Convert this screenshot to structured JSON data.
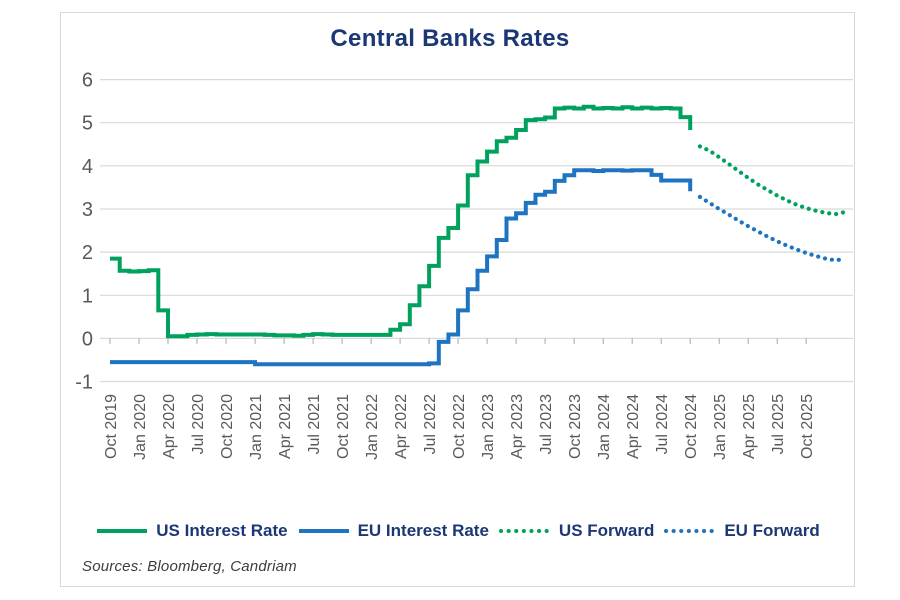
{
  "colors": {
    "us_green": "#00A15C",
    "eu_blue": "#1E74C0",
    "heading_text": "#1C3775",
    "axis_text": "#595959",
    "gridline": "#D9D9D9",
    "tick": "#A6A6A6",
    "card_border": "#D8D8D8",
    "sources_text": "#3D3D3D"
  },
  "footer": {
    "sources_label": "Sources: Bloomberg, Candriam"
  },
  "chart_data": {
    "type": "line",
    "title": "Central Banks Rates",
    "xlabel": "",
    "ylabel": "",
    "x_frequency": "monthly",
    "x_start": "Oct 2019",
    "ylim": [
      -1,
      6
    ],
    "grid": true,
    "legend_position": "bottom",
    "y_ticks": [
      6,
      5,
      4,
      3,
      2,
      1,
      0,
      -1
    ],
    "y_tick_labels": [
      "6",
      "5",
      "4",
      "3",
      "2",
      "1",
      "0",
      "-1"
    ],
    "x_tick_month_indices": [
      0,
      3,
      6,
      9,
      12,
      15,
      18,
      21,
      24,
      27,
      30,
      33,
      36,
      39,
      42,
      45,
      48,
      51,
      54,
      57,
      60,
      63,
      66,
      69,
      72
    ],
    "x_tick_labels": [
      "Oct 2019",
      "Jan 2020",
      "Apr 2020",
      "Jul 2020",
      "Oct 2020",
      "Jan 2021",
      "Apr 2021",
      "Jul 2021",
      "Oct 2021",
      "Jan 2022",
      "Apr 2022",
      "Jul 2022",
      "Oct 2022",
      "Jan 2023",
      "Apr 2023",
      "Jul 2023",
      "Oct 2023",
      "Jan 2024",
      "Apr 2024",
      "Jul 2024",
      "Oct 2024",
      "Jan 2025",
      "Apr 2025",
      "Jul 2025",
      "Oct 2025"
    ],
    "series": [
      {
        "name": "US Interest Rate",
        "color": "#00A15C",
        "style": "solid",
        "step": true,
        "start_month": 0,
        "start_label": "Oct 2019",
        "values": [
          1.85,
          1.57,
          1.55,
          1.56,
          1.58,
          0.65,
          0.05,
          0.05,
          0.08,
          0.09,
          0.1,
          0.09,
          0.09,
          0.09,
          0.09,
          0.09,
          0.08,
          0.07,
          0.07,
          0.06,
          0.08,
          0.1,
          0.09,
          0.08,
          0.08,
          0.08,
          0.08,
          0.08,
          0.08,
          0.2,
          0.33,
          0.77,
          1.21,
          1.68,
          2.33,
          2.56,
          3.08,
          3.78,
          4.1,
          4.33,
          4.57,
          4.65,
          4.83,
          5.06,
          5.08,
          5.12,
          5.33,
          5.35,
          5.33,
          5.37,
          5.33,
          5.34,
          5.33,
          5.36,
          5.33,
          5.35,
          5.33,
          5.34,
          5.33,
          5.13,
          4.83
        ]
      },
      {
        "name": "EU Interest Rate",
        "color": "#1E74C0",
        "style": "solid",
        "step": true,
        "start_month": 0,
        "start_label": "Oct 2019",
        "values": [
          -0.55,
          -0.55,
          -0.55,
          -0.55,
          -0.55,
          -0.55,
          -0.55,
          -0.55,
          -0.55,
          -0.55,
          -0.55,
          -0.55,
          -0.55,
          -0.55,
          -0.55,
          -0.6,
          -0.6,
          -0.6,
          -0.6,
          -0.6,
          -0.6,
          -0.6,
          -0.6,
          -0.6,
          -0.6,
          -0.6,
          -0.6,
          -0.6,
          -0.6,
          -0.6,
          -0.6,
          -0.6,
          -0.6,
          -0.58,
          -0.08,
          0.09,
          0.65,
          1.14,
          1.57,
          1.9,
          2.28,
          2.78,
          2.9,
          3.14,
          3.33,
          3.4,
          3.65,
          3.78,
          3.9,
          3.9,
          3.88,
          3.9,
          3.9,
          3.89,
          3.9,
          3.9,
          3.79,
          3.66,
          3.66,
          3.66,
          3.41
        ]
      },
      {
        "name": "US Forward",
        "color": "#00A15C",
        "style": "dotted",
        "step": false,
        "start_month": 61,
        "start_label": "Nov 2024",
        "values": [
          4.45,
          4.35,
          4.2,
          4.04,
          3.88,
          3.72,
          3.57,
          3.44,
          3.31,
          3.2,
          3.1,
          3.02,
          2.96,
          2.91,
          2.88,
          2.93
        ]
      },
      {
        "name": "EU Forward",
        "color": "#1E74C0",
        "style": "dotted",
        "step": false,
        "start_month": 61,
        "start_label": "Nov 2024",
        "values": [
          3.28,
          3.14,
          3.0,
          2.87,
          2.73,
          2.6,
          2.48,
          2.36,
          2.25,
          2.15,
          2.06,
          1.98,
          1.91,
          1.85,
          1.81,
          1.84
        ]
      }
    ]
  }
}
